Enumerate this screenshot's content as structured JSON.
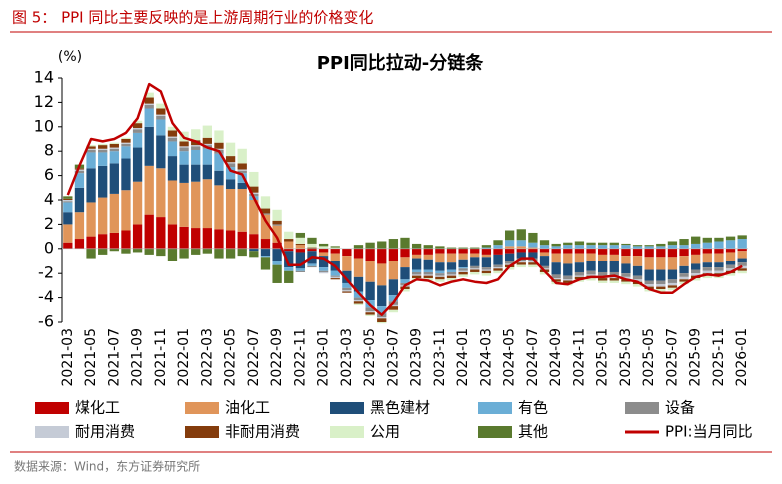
{
  "figure_title": "图 5： PPI 同比主要反映的是上游周期行业的价格变化",
  "source": "数据来源：Wind，东方证券研究所",
  "chart_data": {
    "type": "bar",
    "stacked": true,
    "title": "PPI同比拉动-分链条",
    "y_label": "(%)",
    "ylim": [
      -6,
      14
    ],
    "yticks": [
      -6,
      -4,
      -2,
      0,
      2,
      4,
      6,
      8,
      10,
      12,
      14
    ],
    "grid": false,
    "legend": "bottom",
    "categories": [
      "2021-03",
      null,
      "2021-05",
      null,
      "2021-07",
      null,
      "2021-09",
      null,
      "2021-11",
      null,
      "2022-01",
      null,
      "2022-03",
      null,
      "2022-05",
      null,
      "2022-07",
      null,
      "2022-09",
      null,
      "2022-11",
      null,
      "2023-01",
      null,
      "2023-03",
      null,
      "2023-05",
      null,
      "2023-07",
      null,
      "2023-09",
      null,
      "2023-11",
      null,
      "2024-01",
      null,
      "2024-03",
      null,
      "2024-05",
      null,
      "2024-07",
      null,
      "2024-09",
      null,
      "2024-11",
      null,
      "2025-01",
      null,
      "2025-03",
      null,
      "2025-05",
      null,
      "2025-07",
      null,
      "2025-09",
      null,
      "2025-11",
      null,
      "2026-01"
    ],
    "series": [
      {
        "name": "煤化工",
        "color": "#c00000",
        "values": [
          0.5,
          0.8,
          1.0,
          1.2,
          1.3,
          1.5,
          2.0,
          2.8,
          2.6,
          2.0,
          1.8,
          1.7,
          1.7,
          1.6,
          1.5,
          1.4,
          1.2,
          0.8,
          0.5,
          -0.2,
          -0.3,
          -0.2,
          -0.3,
          -0.4,
          -0.6,
          -0.8,
          -1.0,
          -1.2,
          -1.0,
          -0.7,
          -0.5,
          -0.5,
          -0.4,
          -0.4,
          -0.4,
          -0.4,
          -0.5,
          -0.5,
          -0.4,
          -0.3,
          -0.3,
          -0.3,
          -0.4,
          -0.4,
          -0.4,
          -0.4,
          -0.5,
          -0.5,
          -0.6,
          -0.6,
          -0.7,
          -0.7,
          -0.7,
          -0.6,
          -0.5,
          -0.4,
          -0.4,
          -0.3,
          -0.2
        ]
      },
      {
        "name": "油化工",
        "color": "#e0955a",
        "values": [
          1.5,
          2.2,
          2.8,
          3.0,
          3.2,
          3.3,
          3.5,
          4.0,
          4.0,
          3.6,
          3.6,
          3.8,
          4.0,
          3.6,
          3.4,
          3.5,
          2.8,
          2.0,
          1.4,
          0.6,
          0.3,
          0.0,
          -0.3,
          -0.6,
          -1.2,
          -1.5,
          -1.7,
          -1.8,
          -1.5,
          -0.8,
          -0.3,
          -0.4,
          -0.7,
          -0.7,
          -0.5,
          -0.3,
          -0.2,
          0.0,
          0.2,
          0.2,
          0.1,
          -0.3,
          -0.7,
          -0.8,
          -0.7,
          -0.6,
          -0.5,
          -0.5,
          -0.6,
          -0.8,
          -1.0,
          -1.0,
          -1.0,
          -0.8,
          -0.7,
          -0.7,
          -0.7,
          -0.7,
          -0.6
        ]
      },
      {
        "name": "黑色建材",
        "color": "#1f4e79",
        "values": [
          1.0,
          2.0,
          2.8,
          2.6,
          2.5,
          2.6,
          2.8,
          3.2,
          2.7,
          2.0,
          1.5,
          1.4,
          1.2,
          1.2,
          0.8,
          0.5,
          -0.2,
          -0.6,
          -1.0,
          -1.3,
          -1.3,
          -1.0,
          -0.9,
          -0.8,
          -1.0,
          -1.2,
          -1.5,
          -1.7,
          -1.3,
          -1.0,
          -0.9,
          -0.8,
          -0.7,
          -0.6,
          -0.6,
          -0.7,
          -0.8,
          -0.8,
          -0.6,
          -0.5,
          -0.5,
          -0.8,
          -1.0,
          -1.0,
          -0.8,
          -0.8,
          -0.9,
          -0.9,
          -0.8,
          -0.8,
          -0.9,
          -0.9,
          -0.8,
          -0.6,
          -0.5,
          -0.4,
          -0.4,
          -0.3,
          -0.3
        ]
      },
      {
        "name": "有色",
        "color": "#6baed6",
        "values": [
          0.8,
          1.2,
          1.3,
          1.1,
          1.0,
          1.0,
          1.2,
          1.5,
          1.3,
          1.2,
          1.1,
          1.2,
          1.3,
          1.4,
          1.0,
          0.8,
          0.3,
          -0.1,
          -0.3,
          -0.3,
          -0.2,
          -0.2,
          -0.3,
          -0.4,
          -0.4,
          -0.5,
          -0.6,
          -0.6,
          -0.5,
          -0.3,
          -0.2,
          -0.2,
          -0.2,
          -0.2,
          -0.1,
          0.0,
          0.1,
          0.3,
          0.5,
          0.5,
          0.4,
          0.3,
          0.2,
          0.3,
          0.3,
          0.3,
          0.3,
          0.3,
          0.3,
          0.2,
          0.2,
          0.2,
          0.3,
          0.3,
          0.4,
          0.5,
          0.6,
          0.7,
          0.8
        ]
      },
      {
        "name": "设备",
        "color": "#8c8c8c",
        "values": [
          0.1,
          0.2,
          0.2,
          0.2,
          0.2,
          0.2,
          0.3,
          0.3,
          0.3,
          0.3,
          0.3,
          0.3,
          0.3,
          0.3,
          0.3,
          0.2,
          0.2,
          0.1,
          0.1,
          0.0,
          -0.1,
          -0.1,
          -0.1,
          -0.1,
          -0.2,
          -0.2,
          -0.3,
          -0.3,
          -0.3,
          -0.2,
          -0.2,
          -0.2,
          -0.2,
          -0.2,
          -0.2,
          -0.2,
          -0.2,
          -0.2,
          -0.2,
          -0.2,
          -0.2,
          -0.2,
          -0.3,
          -0.3,
          -0.3,
          -0.3,
          -0.3,
          -0.3,
          -0.3,
          -0.3,
          -0.3,
          -0.3,
          -0.3,
          -0.3,
          -0.3,
          -0.3,
          -0.3,
          -0.3,
          -0.3
        ]
      },
      {
        "name": "耐用消费",
        "color": "#c5cbd6",
        "values": [
          0.1,
          0.1,
          0.1,
          0.1,
          0.1,
          0.1,
          0.1,
          0.1,
          0.1,
          0.1,
          0.1,
          0.1,
          0.1,
          0.1,
          0.1,
          0.1,
          0.1,
          0.0,
          0.0,
          0.0,
          0.0,
          0.0,
          -0.1,
          -0.1,
          -0.1,
          -0.1,
          -0.1,
          -0.1,
          -0.1,
          -0.1,
          -0.1,
          -0.1,
          -0.1,
          -0.1,
          -0.1,
          -0.1,
          -0.1,
          -0.1,
          -0.1,
          -0.1,
          -0.1,
          -0.1,
          -0.1,
          -0.1,
          -0.1,
          -0.1,
          -0.2,
          -0.2,
          -0.2,
          -0.2,
          -0.2,
          -0.2,
          -0.2,
          -0.2,
          -0.2,
          -0.2,
          -0.2,
          -0.2,
          -0.2
        ]
      },
      {
        "name": "非耐用消费",
        "color": "#843c0c",
        "values": [
          0.1,
          0.1,
          0.2,
          0.3,
          0.3,
          0.3,
          0.4,
          0.5,
          0.5,
          0.5,
          0.4,
          0.4,
          0.5,
          0.5,
          0.5,
          0.5,
          0.5,
          0.4,
          0.3,
          0.2,
          0.1,
          0.1,
          0.0,
          -0.1,
          -0.1,
          -0.2,
          -0.2,
          -0.3,
          -0.3,
          -0.2,
          -0.2,
          -0.2,
          -0.2,
          -0.2,
          -0.2,
          -0.2,
          -0.2,
          -0.2,
          -0.2,
          -0.2,
          -0.2,
          -0.2,
          -0.2,
          -0.2,
          -0.2,
          -0.2,
          -0.2,
          -0.2,
          -0.2,
          -0.2,
          -0.2,
          -0.2,
          -0.2,
          -0.2,
          -0.2,
          -0.2,
          -0.2,
          -0.2,
          -0.2
        ]
      },
      {
        "name": "公用",
        "color": "#d9f0c8",
        "values": [
          0.0,
          0.0,
          0.1,
          0.1,
          0.1,
          0.1,
          0.2,
          0.4,
          0.4,
          0.3,
          0.8,
          0.9,
          1.0,
          1.0,
          1.1,
          1.2,
          1.2,
          1.0,
          0.9,
          0.6,
          0.5,
          0.3,
          0.2,
          0.1,
          0.0,
          -0.1,
          -0.1,
          -0.1,
          -0.2,
          -0.2,
          -0.2,
          -0.2,
          -0.2,
          -0.2,
          -0.2,
          -0.2,
          -0.2,
          -0.2,
          -0.2,
          -0.2,
          -0.2,
          -0.2,
          -0.2,
          -0.2,
          -0.2,
          -0.2,
          -0.2,
          -0.2,
          -0.2,
          -0.2,
          -0.2,
          -0.2,
          -0.2,
          -0.2,
          -0.2,
          -0.2,
          -0.2,
          -0.2,
          -0.2
        ]
      },
      {
        "name": "其他",
        "color": "#5a7a2e",
        "values": [
          0.2,
          0.3,
          -0.8,
          -0.5,
          -0.2,
          -0.4,
          -0.3,
          -0.5,
          -0.6,
          -1.0,
          -0.8,
          -0.5,
          -0.4,
          -0.8,
          -0.8,
          -0.6,
          -0.5,
          -1.0,
          -1.5,
          -1.0,
          0.4,
          0.5,
          0.2,
          0.1,
          0.0,
          0.3,
          0.5,
          0.6,
          0.8,
          0.9,
          0.4,
          0.3,
          0.2,
          0.1,
          0.1,
          0.1,
          0.2,
          0.4,
          0.8,
          0.9,
          0.8,
          0.4,
          0.2,
          0.2,
          0.3,
          0.2,
          0.2,
          0.2,
          0.1,
          0.1,
          0.1,
          0.2,
          0.3,
          0.5,
          0.6,
          0.4,
          0.3,
          0.3,
          0.3
        ]
      },
      {
        "name": "PPI:当月同比",
        "color": "#c00000",
        "type": "line",
        "values": [
          4.4,
          6.8,
          9.0,
          8.8,
          9.0,
          9.5,
          10.7,
          13.5,
          12.9,
          10.3,
          9.1,
          8.8,
          8.3,
          8.0,
          6.4,
          6.1,
          4.2,
          2.3,
          0.9,
          -1.3,
          -1.3,
          -0.7,
          -0.8,
          -1.4,
          -2.5,
          -3.6,
          -4.6,
          -5.4,
          -4.4,
          -3.0,
          -2.5,
          -2.6,
          -3.0,
          -2.7,
          -2.5,
          -2.7,
          -2.8,
          -2.5,
          -1.4,
          -0.8,
          -0.8,
          -1.8,
          -2.8,
          -2.9,
          -2.5,
          -2.3,
          -2.3,
          -2.2,
          -2.5,
          -2.7,
          -3.3,
          -3.6,
          -3.6,
          -2.9,
          -2.3,
          -2.1,
          -2.2,
          -1.9,
          -1.4
        ]
      }
    ]
  }
}
